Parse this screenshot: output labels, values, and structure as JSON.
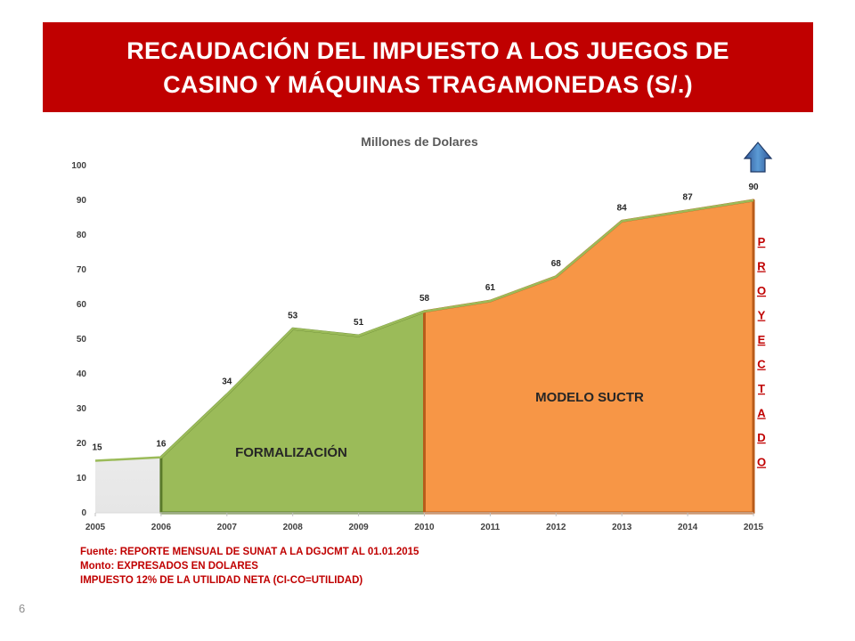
{
  "slide": {
    "title_line1": "RECAUDACIÓN DEL IMPUESTO A LOS JUEGOS DE",
    "title_line2": "CASINO Y MÁQUINAS TRAGAMONEDAS (S/.)",
    "page_number": "6",
    "source_lines": [
      "Fuente: REPORTE MENSUAL DE SUNAT A LA DGJCMT AL 01.01.2015",
      "Monto: EXPRESADOS EN DOLARES",
      "IMPUESTO 12% DE LA UTILIDAD NETA (CI-CO=UTILIDAD)"
    ]
  },
  "chart_data": {
    "type": "area",
    "title": "Millones de Dolares",
    "x": [
      2005,
      2006,
      2007,
      2008,
      2009,
      2010,
      2011,
      2012,
      2013,
      2014,
      2015
    ],
    "values": [
      15,
      16,
      34,
      53,
      51,
      58,
      61,
      68,
      84,
      87,
      90
    ],
    "data_labels": [
      "15",
      "16",
      "34",
      "53",
      "51",
      "58",
      "61",
      "68",
      "84",
      "87",
      "90"
    ],
    "ylim": [
      0,
      100
    ],
    "yticks": [
      0,
      10,
      20,
      30,
      40,
      50,
      60,
      70,
      80,
      90,
      100
    ],
    "grid": false,
    "regions": [
      {
        "label": "FORMALIZACIÓN",
        "x_start": 2006,
        "x_end": 2010,
        "color": "#9bbb59"
      },
      {
        "label": "MODELO SUCTR",
        "x_start": 2010,
        "x_end": 2015,
        "color": "#f79646"
      }
    ],
    "annotation": {
      "text": "PROYECTADO",
      "color": "#c00000",
      "icon": "up-arrow-icon"
    }
  }
}
